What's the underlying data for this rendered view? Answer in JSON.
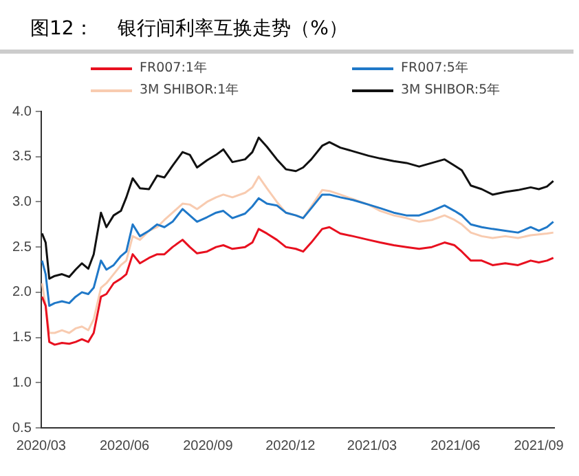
{
  "chart_data": {
    "type": "line",
    "title": "图12：    银行间利率互换走势（%）",
    "x": [
      "2020-03-02",
      "2020-03-06",
      "2020-03-10",
      "2020-03-16",
      "2020-03-24",
      "2020-04-01",
      "2020-04-08",
      "2020-04-15",
      "2020-04-22",
      "2020-04-28",
      "2020-05-06",
      "2020-05-12",
      "2020-05-20",
      "2020-05-28",
      "2020-06-03",
      "2020-06-10",
      "2020-06-18",
      "2020-06-28",
      "2020-07-07",
      "2020-07-15",
      "2020-07-24",
      "2020-08-04",
      "2020-08-12",
      "2020-08-20",
      "2020-08-31",
      "2020-09-10",
      "2020-09-18",
      "2020-09-28",
      "2020-10-12",
      "2020-10-20",
      "2020-10-27",
      "2020-11-05",
      "2020-11-16",
      "2020-11-26",
      "2020-12-07",
      "2020-12-15",
      "2020-12-24",
      "2021-01-05",
      "2021-01-13",
      "2021-01-25",
      "2021-02-08",
      "2021-02-25",
      "2021-03-10",
      "2021-03-25",
      "2021-04-08",
      "2021-04-22",
      "2021-05-06",
      "2021-05-20",
      "2021-05-31",
      "2021-06-08",
      "2021-06-18",
      "2021-06-30",
      "2021-07-12",
      "2021-07-26",
      "2021-08-09",
      "2021-08-23",
      "2021-09-01",
      "2021-09-10",
      "2021-09-17"
    ],
    "series": [
      {
        "name": "FR007:1年",
        "color": "#e8101f",
        "values": [
          1.95,
          1.85,
          1.45,
          1.42,
          1.44,
          1.43,
          1.45,
          1.48,
          1.45,
          1.55,
          1.95,
          1.98,
          2.1,
          2.15,
          2.2,
          2.42,
          2.32,
          2.38,
          2.42,
          2.42,
          2.5,
          2.58,
          2.5,
          2.43,
          2.45,
          2.5,
          2.52,
          2.48,
          2.5,
          2.55,
          2.7,
          2.65,
          2.58,
          2.5,
          2.48,
          2.45,
          2.55,
          2.7,
          2.72,
          2.65,
          2.62,
          2.58,
          2.55,
          2.52,
          2.5,
          2.48,
          2.5,
          2.55,
          2.52,
          2.45,
          2.35,
          2.35,
          2.3,
          2.32,
          2.3,
          2.35,
          2.33,
          2.35,
          2.38
        ]
      },
      {
        "name": "FR007:5年",
        "color": "#1f78c8",
        "values": [
          2.35,
          2.2,
          1.85,
          1.88,
          1.9,
          1.88,
          1.95,
          2.0,
          1.98,
          2.05,
          2.35,
          2.25,
          2.3,
          2.4,
          2.45,
          2.75,
          2.62,
          2.68,
          2.75,
          2.72,
          2.78,
          2.92,
          2.85,
          2.78,
          2.83,
          2.88,
          2.9,
          2.82,
          2.87,
          2.95,
          3.04,
          2.98,
          2.96,
          2.88,
          2.85,
          2.82,
          2.93,
          3.08,
          3.08,
          3.05,
          3.02,
          2.97,
          2.93,
          2.88,
          2.85,
          2.85,
          2.9,
          2.96,
          2.9,
          2.85,
          2.75,
          2.72,
          2.7,
          2.68,
          2.66,
          2.72,
          2.68,
          2.72,
          2.78
        ]
      },
      {
        "name": "3M SHIBOR:1年",
        "color": "#f8cbb0",
        "values": [
          2.1,
          1.85,
          1.55,
          1.55,
          1.58,
          1.55,
          1.6,
          1.62,
          1.58,
          1.7,
          2.05,
          2.1,
          2.2,
          2.3,
          2.35,
          2.62,
          2.58,
          2.68,
          2.72,
          2.8,
          2.88,
          2.98,
          2.97,
          2.92,
          3.0,
          3.05,
          3.08,
          3.05,
          3.1,
          3.16,
          3.28,
          3.15,
          3.0,
          2.88,
          2.85,
          2.82,
          2.95,
          3.13,
          3.12,
          3.08,
          3.03,
          2.97,
          2.9,
          2.85,
          2.82,
          2.78,
          2.8,
          2.85,
          2.8,
          2.75,
          2.66,
          2.62,
          2.6,
          2.62,
          2.6,
          2.63,
          2.64,
          2.65,
          2.66
        ]
      },
      {
        "name": "3M SHIBOR:5年",
        "color": "#111111",
        "values": [
          2.65,
          2.55,
          2.15,
          2.18,
          2.2,
          2.17,
          2.25,
          2.32,
          2.26,
          2.42,
          2.88,
          2.72,
          2.85,
          2.9,
          3.05,
          3.26,
          3.15,
          3.14,
          3.29,
          3.27,
          3.4,
          3.55,
          3.52,
          3.38,
          3.46,
          3.52,
          3.58,
          3.44,
          3.47,
          3.55,
          3.71,
          3.61,
          3.47,
          3.36,
          3.34,
          3.38,
          3.47,
          3.62,
          3.66,
          3.6,
          3.56,
          3.51,
          3.48,
          3.45,
          3.43,
          3.39,
          3.43,
          3.47,
          3.4,
          3.35,
          3.18,
          3.14,
          3.08,
          3.11,
          3.13,
          3.16,
          3.14,
          3.17,
          3.23
        ]
      }
    ],
    "xlim": [
      "2020-03-01",
      "2021-09-18"
    ],
    "xticks": [
      {
        "value": "2020-03-01",
        "label": "2020/03"
      },
      {
        "value": "2020-06-01",
        "label": "2020/06"
      },
      {
        "value": "2020-09-01",
        "label": "2020/09"
      },
      {
        "value": "2020-12-01",
        "label": "2020/12"
      },
      {
        "value": "2021-03-01",
        "label": "2021/03"
      },
      {
        "value": "2021-06-01",
        "label": "2021/06"
      },
      {
        "value": "2021-09-01",
        "label": "2021/09"
      }
    ],
    "ylim": [
      0.5,
      4.0
    ],
    "yticks": [
      {
        "value": 0.5,
        "label": "0.5"
      },
      {
        "value": 1,
        "label": "1.0"
      },
      {
        "value": 1.5,
        "label": "1.5"
      },
      {
        "value": 2,
        "label": "2.0"
      },
      {
        "value": 2.5,
        "label": "2.5"
      },
      {
        "value": 3,
        "label": "3.0"
      },
      {
        "value": 3.5,
        "label": "3.5"
      },
      {
        "value": 4,
        "label": "4.0"
      }
    ],
    "grid": false,
    "legend": "top",
    "marker": "none",
    "line_style": "solid"
  }
}
